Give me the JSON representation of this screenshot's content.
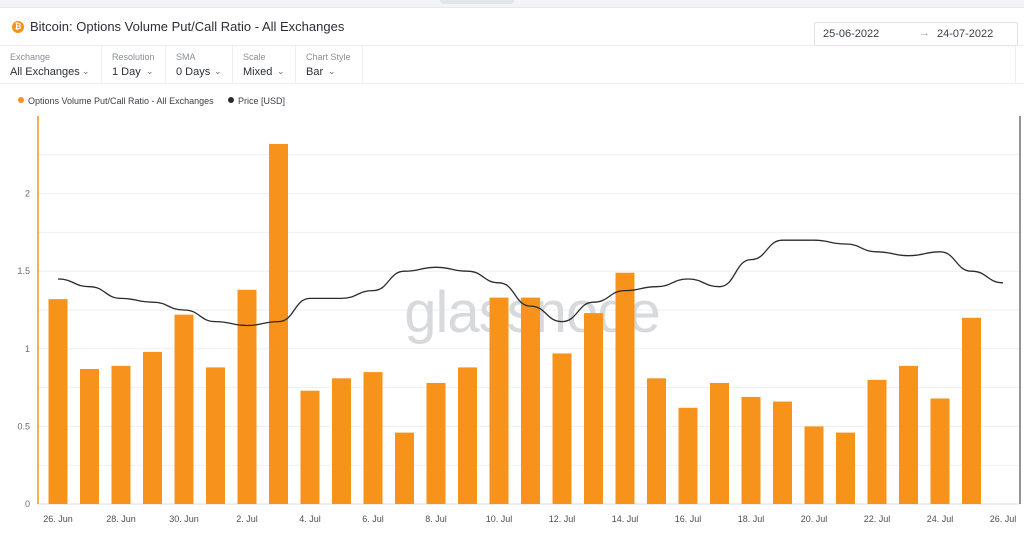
{
  "header": {
    "icon": "bitcoin-icon",
    "icon_glyph": "₿",
    "title": "Bitcoin: Options Volume Put/Call Ratio - All Exchanges",
    "date_from": "25-06-2022",
    "date_arrow": "→",
    "date_to": "24-07-2022"
  },
  "controls": [
    {
      "label": "Exchange",
      "value": "All Exchanges"
    },
    {
      "label": "Resolution",
      "value": "1 Day"
    },
    {
      "label": "SMA",
      "value": "0 Days"
    },
    {
      "label": "Scale",
      "value": "Mixed"
    },
    {
      "label": "Chart Style",
      "value": "Bar"
    }
  ],
  "legend": [
    {
      "name": "Options Volume Put/Call Ratio - All Exchanges",
      "color": "#f7931a"
    },
    {
      "name": "Price [USD]",
      "color": "#2b2b2b"
    }
  ],
  "watermark": "glassnode",
  "chart_data": {
    "type": "bar",
    "x_tick_labels": [
      "26. Jun",
      "28. Jun",
      "30. Jun",
      "2. Jul",
      "4. Jul",
      "6. Jul",
      "8. Jul",
      "10. Jul",
      "12. Jul",
      "14. Jul",
      "16. Jul",
      "18. Jul",
      "20. Jul",
      "22. Jul",
      "24. Jul",
      "26. Jul"
    ],
    "y_ticks": [
      "0",
      "0.5",
      "1",
      "1.5",
      "2"
    ],
    "ylim": [
      0,
      2.5
    ],
    "grid": true,
    "series": [
      {
        "name": "Options Volume Put/Call Ratio - All Exchanges",
        "type": "bar",
        "color": "#f7931a",
        "dates": [
          "2022-06-26",
          "2022-06-27",
          "2022-06-28",
          "2022-06-29",
          "2022-06-30",
          "2022-07-01",
          "2022-07-02",
          "2022-07-03",
          "2022-07-04",
          "2022-07-05",
          "2022-07-06",
          "2022-07-07",
          "2022-07-08",
          "2022-07-09",
          "2022-07-10",
          "2022-07-11",
          "2022-07-12",
          "2022-07-13",
          "2022-07-14",
          "2022-07-15",
          "2022-07-16",
          "2022-07-17",
          "2022-07-18",
          "2022-07-19",
          "2022-07-20",
          "2022-07-21",
          "2022-07-22",
          "2022-07-23",
          "2022-07-24",
          "2022-07-25"
        ],
        "values": [
          1.32,
          0.87,
          0.89,
          0.98,
          1.22,
          0.88,
          1.38,
          2.32,
          0.73,
          0.81,
          0.85,
          0.46,
          0.78,
          0.88,
          1.33,
          1.33,
          0.97,
          1.23,
          1.49,
          0.81,
          0.62,
          0.78,
          0.69,
          0.66,
          0.5,
          0.46,
          0.8,
          0.89,
          0.68,
          1.2
        ]
      },
      {
        "name": "Price [USD]",
        "type": "line",
        "color": "#2b2b2b",
        "dates": [
          "2022-06-26",
          "2022-06-27",
          "2022-06-28",
          "2022-06-29",
          "2022-06-30",
          "2022-07-01",
          "2022-07-02",
          "2022-07-03",
          "2022-07-04",
          "2022-07-05",
          "2022-07-06",
          "2022-07-07",
          "2022-07-08",
          "2022-07-09",
          "2022-07-10",
          "2022-07-11",
          "2022-07-12",
          "2022-07-13",
          "2022-07-14",
          "2022-07-15",
          "2022-07-16",
          "2022-07-17",
          "2022-07-18",
          "2022-07-19",
          "2022-07-20",
          "2022-07-21",
          "2022-07-22",
          "2022-07-23",
          "2022-07-24",
          "2022-07-25",
          "2022-07-26"
        ],
        "relative_level": [
          0.58,
          0.56,
          0.53,
          0.52,
          0.5,
          0.47,
          0.46,
          0.47,
          0.53,
          0.53,
          0.55,
          0.6,
          0.61,
          0.6,
          0.57,
          0.51,
          0.47,
          0.52,
          0.55,
          0.56,
          0.58,
          0.56,
          0.63,
          0.68,
          0.68,
          0.67,
          0.65,
          0.64,
          0.65,
          0.6,
          0.57
        ]
      }
    ]
  }
}
